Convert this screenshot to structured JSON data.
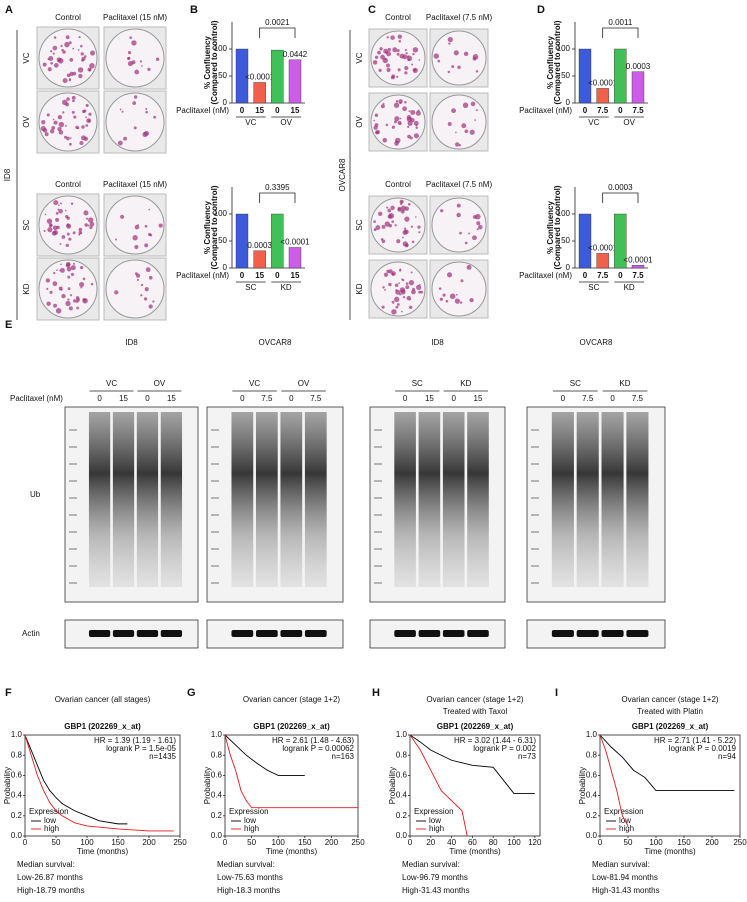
{
  "panel_letters": [
    "A",
    "B",
    "C",
    "D",
    "E",
    "F",
    "G",
    "H",
    "I"
  ],
  "panel_a": {
    "cell_line": "ID8",
    "sections": [
      {
        "columns": [
          "Control",
          "Paclitaxel (15 nM)"
        ],
        "rows": [
          "VC",
          "OV"
        ]
      },
      {
        "columns": [
          "Control",
          "Paclitaxel (15 nM)"
        ],
        "rows": [
          "SC",
          "KD"
        ]
      }
    ]
  },
  "panel_c": {
    "cell_line": "OVCAR8",
    "sections": [
      {
        "columns": [
          "Control",
          "Paclitaxel (7.5 nM)"
        ],
        "rows": [
          "VC",
          "OV"
        ]
      },
      {
        "columns": [
          "Control",
          "Paclitaxel (7.5 nM)"
        ],
        "rows": [
          "SC",
          "KD"
        ]
      }
    ]
  },
  "panel_e": {
    "row_label": "Paclitaxel (nM)",
    "bands": [
      "Ub",
      "Actin"
    ],
    "blots": [
      {
        "cell_line": "ID8",
        "groups": [
          "VC",
          "OV"
        ],
        "lanes": [
          "0",
          "15",
          "0",
          "15"
        ]
      },
      {
        "cell_line": "OVCAR8",
        "groups": [
          "VC",
          "OV"
        ],
        "lanes": [
          "0",
          "7.5",
          "0",
          "7.5"
        ]
      },
      {
        "cell_line": "ID8",
        "groups": [
          "SC",
          "KD"
        ],
        "lanes": [
          "0",
          "15",
          "0",
          "15"
        ]
      },
      {
        "cell_line": "OVCAR8",
        "groups": [
          "SC",
          "KD"
        ],
        "lanes": [
          "0",
          "7.5",
          "0",
          "7.5"
        ]
      }
    ]
  },
  "chart_data": [
    {
      "type": "bar",
      "ylabel": [
        "% Confluency",
        "(Compared to control)"
      ],
      "xlabel": "Paclitaxel (nM)",
      "categories": [
        "0",
        "15",
        "0",
        "15"
      ],
      "groups": [
        "VC",
        "OV"
      ],
      "values": [
        100,
        38,
        98,
        80
      ],
      "colors": [
        "#3b5bdb",
        "#f0604a",
        "#40c057",
        "#cc5de8"
      ],
      "bar_annotations": [
        null,
        "<0.0001",
        null,
        "0.0442"
      ],
      "bracket": "0.0021",
      "ylim": [
        0,
        150
      ],
      "yticks": [
        0,
        50,
        100
      ]
    },
    {
      "type": "bar",
      "ylabel": [
        "% Confluency",
        "(Compared to control)"
      ],
      "xlabel": "Paclitaxel (nM)",
      "categories": [
        "0",
        "15",
        "0",
        "15"
      ],
      "groups": [
        "SC",
        "KD"
      ],
      "values": [
        100,
        32,
        100,
        38
      ],
      "colors": [
        "#3b5bdb",
        "#f0604a",
        "#40c057",
        "#cc5de8"
      ],
      "bar_annotations": [
        null,
        "0.0003",
        null,
        "<0.0001"
      ],
      "bracket": "0.3395",
      "ylim": [
        0,
        150
      ],
      "yticks": [
        0,
        50,
        100
      ]
    },
    {
      "type": "bar",
      "ylabel": [
        "% Confluency",
        "(Compared to control)"
      ],
      "xlabel": "Paclitaxel (nM)",
      "categories": [
        "0",
        "7.5",
        "0",
        "7.5"
      ],
      "groups": [
        "VC",
        "OV"
      ],
      "values": [
        100,
        27,
        100,
        58
      ],
      "colors": [
        "#3b5bdb",
        "#f0604a",
        "#40c057",
        "#cc5de8"
      ],
      "bar_annotations": [
        null,
        "<0.0001",
        null,
        "0.0003"
      ],
      "bracket": "0.0011",
      "ylim": [
        0,
        150
      ],
      "yticks": [
        0,
        50,
        100
      ]
    },
    {
      "type": "bar",
      "ylabel": [
        "% Confluency",
        "(Compared to control)"
      ],
      "xlabel": "Paclitaxel (nM)",
      "categories": [
        "0",
        "7.5",
        "0",
        "7.5"
      ],
      "groups": [
        "SC",
        "KD"
      ],
      "values": [
        100,
        27,
        100,
        5
      ],
      "colors": [
        "#3b5bdb",
        "#f0604a",
        "#40c057",
        "#cc5de8"
      ],
      "bar_annotations": [
        null,
        "<0.0001",
        null,
        "<0.0001"
      ],
      "bracket": "0.0003",
      "ylim": [
        0,
        150
      ],
      "yticks": [
        0,
        50,
        100
      ]
    },
    {
      "type": "line",
      "title": [
        "Ovarian cancer (all stages)"
      ],
      "subtitle": "GBP1 (202269_x_at)",
      "stats": [
        "HR = 1.39 (1.19 - 1.61)",
        "logrank P = 1.5e-05",
        "n=1435"
      ],
      "xlabel": "Time (months)",
      "ylabel": "Probability",
      "legend_title": "Expression",
      "series": [
        {
          "name": "low",
          "color": "#000000",
          "x": [
            0,
            10,
            20,
            30,
            40,
            50,
            60,
            80,
            100,
            120,
            150,
            165
          ],
          "values": [
            1.0,
            0.85,
            0.7,
            0.55,
            0.45,
            0.38,
            0.32,
            0.25,
            0.2,
            0.15,
            0.12,
            0.12
          ]
        },
        {
          "name": "high",
          "color": "#e41a1c",
          "x": [
            0,
            10,
            20,
            30,
            40,
            50,
            60,
            80,
            100,
            150,
            200,
            240
          ],
          "values": [
            1.0,
            0.8,
            0.6,
            0.45,
            0.33,
            0.25,
            0.2,
            0.13,
            0.1,
            0.07,
            0.05,
            0.05
          ]
        }
      ],
      "xlim": [
        0,
        250
      ],
      "xticks": [
        0,
        50,
        100,
        150,
        200,
        250
      ],
      "ylim": [
        0,
        1
      ],
      "yticks": [
        {
          "value": 0,
          "label": "0.0"
        },
        {
          "value": 0.2,
          "label": "0.2"
        },
        {
          "value": 0.4,
          "label": "0.4"
        },
        {
          "value": 0.6,
          "label": "0.6"
        },
        {
          "value": 0.8,
          "label": "0.8"
        },
        {
          "value": 1,
          "label": "1.0"
        }
      ],
      "notes": [
        "Median survival:",
        "Low-26.87 months",
        "High-18.79 months"
      ]
    },
    {
      "type": "line",
      "title": [
        "Ovarian cancer (stage 1+2)"
      ],
      "subtitle": "GBP1 (202269_x_at)",
      "stats": [
        "HR = 2.61 (1.48 - 4.63)",
        "logrank P = 0.00062",
        "n=163"
      ],
      "xlabel": "Time (months)",
      "ylabel": "Probability",
      "legend_title": "Expression",
      "series": [
        {
          "name": "low",
          "color": "#000000",
          "x": [
            0,
            20,
            40,
            60,
            80,
            100,
            150
          ],
          "values": [
            1.0,
            0.9,
            0.8,
            0.72,
            0.65,
            0.6,
            0.6
          ]
        },
        {
          "name": "high",
          "color": "#e41a1c",
          "x": [
            0,
            10,
            20,
            30,
            40,
            50,
            100,
            250
          ],
          "values": [
            1.0,
            0.8,
            0.65,
            0.45,
            0.35,
            0.28,
            0.28,
            0.28
          ]
        }
      ],
      "xlim": [
        0,
        250
      ],
      "xticks": [
        0,
        50,
        100,
        150,
        200,
        250
      ],
      "ylim": [
        0,
        1
      ],
      "yticks": [
        {
          "value": 0,
          "label": "0.0"
        },
        {
          "value": 0.2,
          "label": "0.2"
        },
        {
          "value": 0.4,
          "label": "0.4"
        },
        {
          "value": 0.6,
          "label": "0.6"
        },
        {
          "value": 0.8,
          "label": "0.8"
        },
        {
          "value": 1,
          "label": "1.0"
        }
      ],
      "notes": [
        "Median survival:",
        "Low-75.63 months",
        "High-18.3 months"
      ]
    },
    {
      "type": "line",
      "title": [
        "Ovarian cancer (stage 1+2)",
        "Treated with Taxol"
      ],
      "subtitle": "GBP1 (202269_x_at)",
      "stats": [
        "HR = 3.02 (1.44 - 6.31)",
        "logrank P = 0.002",
        "n=73"
      ],
      "xlabel": "Time (months)",
      "ylabel": "Probability",
      "legend_title": "Expression",
      "series": [
        {
          "name": "low",
          "color": "#000000",
          "x": [
            0,
            10,
            20,
            40,
            60,
            80,
            100,
            120
          ],
          "values": [
            1.0,
            0.93,
            0.85,
            0.75,
            0.7,
            0.68,
            0.42,
            0.42
          ]
        },
        {
          "name": "high",
          "color": "#e41a1c",
          "x": [
            0,
            10,
            20,
            30,
            40,
            50,
            55
          ],
          "values": [
            1.0,
            0.85,
            0.65,
            0.45,
            0.35,
            0.25,
            0
          ]
        }
      ],
      "xlim": [
        0,
        125
      ],
      "xticks": [
        0,
        20,
        40,
        60,
        80,
        100,
        120
      ],
      "ylim": [
        0,
        1
      ],
      "yticks": [
        {
          "value": 0,
          "label": "0.0"
        },
        {
          "value": 0.2,
          "label": "0.2"
        },
        {
          "value": 0.4,
          "label": "0.4"
        },
        {
          "value": 0.6,
          "label": "0.6"
        },
        {
          "value": 0.8,
          "label": "0.8"
        },
        {
          "value": 1,
          "label": "1.0"
        }
      ],
      "notes": [
        "Median survival:",
        "Low-96.79 months",
        "High-31.43 months"
      ]
    },
    {
      "type": "line",
      "title": [
        "Ovarian cancer (stage 1+2)",
        "Treated with Platin"
      ],
      "subtitle": "GBP1 (202269_x_at)",
      "stats": [
        "HR = 2.71 (1.41 - 5.22)",
        "logrank P = 0.0019",
        "n=94"
      ],
      "xlabel": "Time (months)",
      "ylabel": "Probability",
      "legend_title": "Expression",
      "series": [
        {
          "name": "low",
          "color": "#000000",
          "x": [
            0,
            20,
            40,
            60,
            80,
            100,
            150,
            240
          ],
          "values": [
            1.0,
            0.88,
            0.78,
            0.65,
            0.58,
            0.45,
            0.45,
            0.45
          ]
        },
        {
          "name": "high",
          "color": "#e41a1c",
          "x": [
            0,
            10,
            20,
            30,
            40,
            50
          ],
          "values": [
            1.0,
            0.85,
            0.65,
            0.45,
            0.2,
            0.1
          ]
        }
      ],
      "xlim": [
        0,
        250
      ],
      "xticks": [
        0,
        50,
        100,
        150,
        200,
        250
      ],
      "ylim": [
        0,
        1
      ],
      "yticks": [
        {
          "value": 0,
          "label": "0.0"
        },
        {
          "value": 0.2,
          "label": "0.2"
        },
        {
          "value": 0.4,
          "label": "0.4"
        },
        {
          "value": 0.6,
          "label": "0.6"
        },
        {
          "value": 0.8,
          "label": "0.8"
        },
        {
          "value": 1,
          "label": "1.0"
        }
      ],
      "notes": [
        "Median survival:",
        "Low-81.94 months",
        "High-31.43 months"
      ]
    }
  ]
}
